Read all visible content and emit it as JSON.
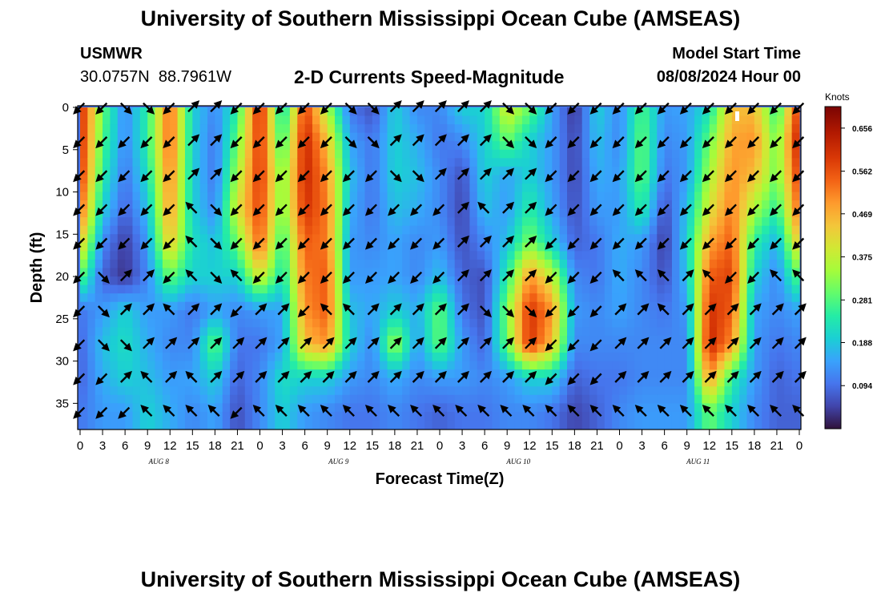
{
  "page": {
    "title": "University of Southern Mississippi Ocean Cube (AMSEAS)",
    "footer_title": "University of Southern Mississippi Ocean Cube (AMSEAS)"
  },
  "header": {
    "station_id": "USMWR",
    "lat": "30.0757N",
    "lon": "88.7961W",
    "subtitle": "2-D Currents Speed-Magnitude",
    "model_start_label": "Model Start Time",
    "model_start_value": "08/08/2024 Hour 00"
  },
  "chart_data": {
    "type": "heatmap",
    "title": "2-D Currents Speed-Magnitude",
    "xlabel": "Forecast Time(Z)",
    "ylabel": "Depth (ft)",
    "colorbar_label": "Knots",
    "xlim": [
      0,
      96
    ],
    "ylim": [
      0,
      38
    ],
    "x_tick_values": [
      0,
      3,
      6,
      9,
      12,
      15,
      18,
      21,
      24,
      27,
      30,
      33,
      36,
      39,
      42,
      45,
      48,
      51,
      54,
      57,
      60,
      63,
      66,
      69,
      72,
      75,
      78,
      81,
      84,
      87,
      90,
      93,
      96
    ],
    "x_tick_labels": [
      "0",
      "3",
      "6",
      "9",
      "12",
      "15",
      "18",
      "21",
      "0",
      "3",
      "6",
      "9",
      "12",
      "15",
      "18",
      "21",
      "0",
      "3",
      "6",
      "9",
      "12",
      "15",
      "18",
      "21",
      "0",
      "3",
      "6",
      "9",
      "12",
      "15",
      "18",
      "21",
      "0"
    ],
    "date_labels": [
      {
        "text": "AUG 8",
        "hour": 10.5
      },
      {
        "text": "AUG 9",
        "hour": 34.5
      },
      {
        "text": "AUG 10",
        "hour": 58.5
      },
      {
        "text": "AUG 11",
        "hour": 82.5
      }
    ],
    "y_ticks": [
      0,
      5,
      10,
      15,
      20,
      25,
      30,
      35
    ],
    "colorbar_ticks": [
      0.094,
      0.188,
      0.281,
      0.375,
      0.469,
      0.562,
      0.656
    ],
    "colorbar_range": [
      0,
      0.703
    ],
    "arrow_hours": [
      0,
      3,
      6,
      9,
      12,
      15,
      18,
      21,
      24,
      27,
      30,
      33,
      36,
      39,
      42,
      45,
      48,
      51,
      54,
      57,
      60,
      63,
      66,
      69,
      72,
      75,
      78,
      81,
      84,
      87,
      90,
      93,
      96
    ],
    "arrow_depths": [
      0,
      4,
      8,
      12,
      16,
      20,
      24,
      28,
      32,
      36
    ],
    "speed_column_profiles": [
      {
        "hour": 0,
        "speed": [
          0.62,
          0.62,
          0.6,
          0.55,
          0.45,
          0.3,
          0.1,
          0.08,
          0.08,
          0.1
        ]
      },
      {
        "hour": 3,
        "speed": [
          0.3,
          0.28,
          0.25,
          0.2,
          0.12,
          0.08,
          0.14,
          0.18,
          0.16,
          0.14
        ]
      },
      {
        "hour": 6,
        "speed": [
          0.12,
          0.12,
          0.1,
          0.08,
          0.04,
          0.03,
          0.2,
          0.22,
          0.2,
          0.14
        ]
      },
      {
        "hour": 9,
        "speed": [
          0.25,
          0.25,
          0.22,
          0.18,
          0.14,
          0.12,
          0.14,
          0.16,
          0.18,
          0.2
        ]
      },
      {
        "hour": 12,
        "speed": [
          0.55,
          0.55,
          0.52,
          0.5,
          0.45,
          0.3,
          0.14,
          0.12,
          0.14,
          0.16
        ]
      },
      {
        "hour": 15,
        "speed": [
          0.2,
          0.2,
          0.2,
          0.2,
          0.22,
          0.2,
          0.1,
          0.12,
          0.15,
          0.12
        ]
      },
      {
        "hour": 18,
        "speed": [
          0.12,
          0.1,
          0.1,
          0.12,
          0.18,
          0.2,
          0.15,
          0.3,
          0.2,
          0.15
        ]
      },
      {
        "hour": 21,
        "speed": [
          0.25,
          0.3,
          0.35,
          0.4,
          0.3,
          0.2,
          0.12,
          0.1,
          0.08,
          0.06
        ]
      },
      {
        "hour": 24,
        "speed": [
          0.62,
          0.6,
          0.6,
          0.58,
          0.55,
          0.4,
          0.14,
          0.1,
          0.12,
          0.12
        ]
      },
      {
        "hour": 27,
        "speed": [
          0.2,
          0.25,
          0.3,
          0.3,
          0.25,
          0.22,
          0.15,
          0.15,
          0.22,
          0.2
        ]
      },
      {
        "hour": 30,
        "speed": [
          0.58,
          0.62,
          0.62,
          0.6,
          0.55,
          0.52,
          0.5,
          0.45,
          0.2,
          0.14
        ]
      },
      {
        "hour": 33,
        "speed": [
          0.35,
          0.45,
          0.5,
          0.52,
          0.52,
          0.55,
          0.55,
          0.5,
          0.2,
          0.12
        ]
      },
      {
        "hour": 36,
        "speed": [
          0.1,
          0.15,
          0.18,
          0.16,
          0.14,
          0.14,
          0.18,
          0.2,
          0.14,
          0.1
        ]
      },
      {
        "hour": 39,
        "speed": [
          0.06,
          0.1,
          0.1,
          0.1,
          0.12,
          0.14,
          0.15,
          0.12,
          0.12,
          0.1
        ]
      },
      {
        "hour": 42,
        "speed": [
          0.2,
          0.2,
          0.2,
          0.18,
          0.15,
          0.15,
          0.2,
          0.35,
          0.16,
          0.12
        ]
      },
      {
        "hour": 45,
        "speed": [
          0.12,
          0.16,
          0.18,
          0.16,
          0.12,
          0.12,
          0.16,
          0.14,
          0.12,
          0.1
        ]
      },
      {
        "hour": 48,
        "speed": [
          0.12,
          0.1,
          0.12,
          0.12,
          0.14,
          0.18,
          0.3,
          0.3,
          0.14,
          0.08
        ]
      },
      {
        "hour": 51,
        "speed": [
          0.2,
          0.12,
          0.06,
          0.05,
          0.06,
          0.08,
          0.1,
          0.14,
          0.14,
          0.1
        ]
      },
      {
        "hour": 54,
        "speed": [
          0.2,
          0.2,
          0.2,
          0.18,
          0.12,
          0.06,
          0.06,
          0.08,
          0.12,
          0.1
        ]
      },
      {
        "hour": 57,
        "speed": [
          0.4,
          0.3,
          0.15,
          0.14,
          0.18,
          0.25,
          0.32,
          0.3,
          0.14,
          0.12
        ]
      },
      {
        "hour": 60,
        "speed": [
          0.3,
          0.2,
          0.2,
          0.25,
          0.32,
          0.5,
          0.6,
          0.6,
          0.2,
          0.12
        ]
      },
      {
        "hour": 63,
        "speed": [
          0.15,
          0.14,
          0.14,
          0.15,
          0.2,
          0.38,
          0.5,
          0.45,
          0.2,
          0.1
        ]
      },
      {
        "hour": 66,
        "speed": [
          0.03,
          0.05,
          0.05,
          0.06,
          0.08,
          0.12,
          0.14,
          0.12,
          0.08,
          0.05
        ]
      },
      {
        "hour": 69,
        "speed": [
          0.2,
          0.18,
          0.16,
          0.14,
          0.1,
          0.1,
          0.12,
          0.12,
          0.1,
          0.08
        ]
      },
      {
        "hour": 72,
        "speed": [
          0.12,
          0.12,
          0.14,
          0.14,
          0.16,
          0.16,
          0.15,
          0.12,
          0.1,
          0.12
        ]
      },
      {
        "hour": 75,
        "speed": [
          0.28,
          0.3,
          0.3,
          0.25,
          0.14,
          0.12,
          0.12,
          0.12,
          0.12,
          0.14
        ]
      },
      {
        "hour": 78,
        "speed": [
          0.14,
          0.12,
          0.1,
          0.06,
          0.04,
          0.06,
          0.1,
          0.12,
          0.12,
          0.14
        ]
      },
      {
        "hour": 81,
        "speed": [
          0.15,
          0.14,
          0.14,
          0.18,
          0.2,
          0.18,
          0.14,
          0.12,
          0.12,
          0.14
        ]
      },
      {
        "hour": 84,
        "speed": [
          0.22,
          0.3,
          0.35,
          0.4,
          0.48,
          0.55,
          0.6,
          0.62,
          0.5,
          0.3
        ]
      },
      {
        "hour": 87,
        "speed": [
          0.45,
          0.48,
          0.5,
          0.52,
          0.55,
          0.58,
          0.55,
          0.5,
          0.25,
          0.2
        ]
      },
      {
        "hour": 90,
        "speed": [
          0.45,
          0.5,
          0.45,
          0.35,
          0.25,
          0.2,
          0.15,
          0.14,
          0.14,
          0.12
        ]
      },
      {
        "hour": 93,
        "speed": [
          0.25,
          0.3,
          0.3,
          0.25,
          0.16,
          0.12,
          0.12,
          0.1,
          0.08,
          0.08
        ]
      },
      {
        "hour": 96,
        "speed": [
          0.6,
          0.65,
          0.6,
          0.55,
          0.45,
          0.3,
          0.15,
          0.12,
          0.1,
          0.08
        ]
      }
    ],
    "direction_columns_deg": [
      [
        135,
        135,
        135,
        135,
        135,
        135,
        135,
        135,
        135,
        135
      ],
      [
        135,
        135,
        135,
        135,
        135,
        45,
        45,
        45,
        135,
        135
      ],
      [
        45,
        135,
        135,
        135,
        135,
        315,
        315,
        45,
        315,
        135
      ],
      [
        45,
        135,
        135,
        135,
        135,
        315,
        315,
        315,
        225,
        225
      ],
      [
        135,
        135,
        135,
        135,
        135,
        135,
        225,
        315,
        315,
        225
      ],
      [
        315,
        315,
        315,
        225,
        225,
        225,
        315,
        315,
        225,
        225
      ],
      [
        315,
        315,
        315,
        45,
        45,
        45,
        315,
        315,
        315,
        225
      ],
      [
        135,
        135,
        135,
        135,
        135,
        225,
        135,
        315,
        315,
        135
      ],
      [
        135,
        135,
        135,
        135,
        135,
        135,
        315,
        315,
        315,
        225
      ],
      [
        135,
        135,
        135,
        135,
        135,
        135,
        315,
        315,
        315,
        225
      ],
      [
        135,
        135,
        135,
        135,
        135,
        135,
        135,
        315,
        315,
        225
      ],
      [
        135,
        135,
        135,
        135,
        135,
        135,
        225,
        315,
        315,
        225
      ],
      [
        45,
        45,
        135,
        135,
        135,
        135,
        225,
        315,
        315,
        225
      ],
      [
        45,
        45,
        135,
        135,
        135,
        135,
        315,
        315,
        315,
        225
      ],
      [
        315,
        315,
        45,
        135,
        135,
        135,
        315,
        315,
        315,
        225
      ],
      [
        315,
        315,
        45,
        135,
        135,
        135,
        315,
        315,
        315,
        225
      ],
      [
        315,
        315,
        315,
        135,
        135,
        135,
        315,
        315,
        315,
        225
      ],
      [
        315,
        315,
        315,
        315,
        315,
        315,
        315,
        315,
        315,
        225
      ],
      [
        315,
        315,
        315,
        225,
        315,
        315,
        45,
        315,
        315,
        225
      ],
      [
        45,
        45,
        315,
        315,
        315,
        315,
        45,
        315,
        315,
        225
      ],
      [
        45,
        45,
        315,
        315,
        315,
        315,
        45,
        315,
        315,
        225
      ],
      [
        135,
        135,
        135,
        135,
        135,
        135,
        135,
        135,
        135,
        225
      ],
      [
        135,
        135,
        135,
        135,
        135,
        135,
        135,
        135,
        135,
        225
      ],
      [
        135,
        135,
        135,
        135,
        135,
        135,
        135,
        135,
        135,
        225
      ],
      [
        135,
        135,
        135,
        135,
        135,
        225,
        315,
        315,
        315,
        225
      ],
      [
        135,
        135,
        135,
        135,
        135,
        225,
        315,
        315,
        315,
        225
      ],
      [
        135,
        135,
        135,
        135,
        135,
        225,
        225,
        315,
        315,
        225
      ],
      [
        135,
        135,
        135,
        135,
        135,
        315,
        315,
        315,
        315,
        225
      ],
      [
        135,
        135,
        135,
        135,
        135,
        225,
        315,
        315,
        315,
        225
      ],
      [
        135,
        135,
        135,
        135,
        135,
        135,
        315,
        315,
        315,
        225
      ],
      [
        135,
        135,
        135,
        135,
        135,
        135,
        315,
        315,
        315,
        225
      ],
      [
        135,
        135,
        135,
        135,
        135,
        225,
        315,
        315,
        315,
        225
      ],
      [
        135,
        135,
        135,
        135,
        135,
        225,
        315,
        315,
        315,
        225
      ]
    ]
  }
}
